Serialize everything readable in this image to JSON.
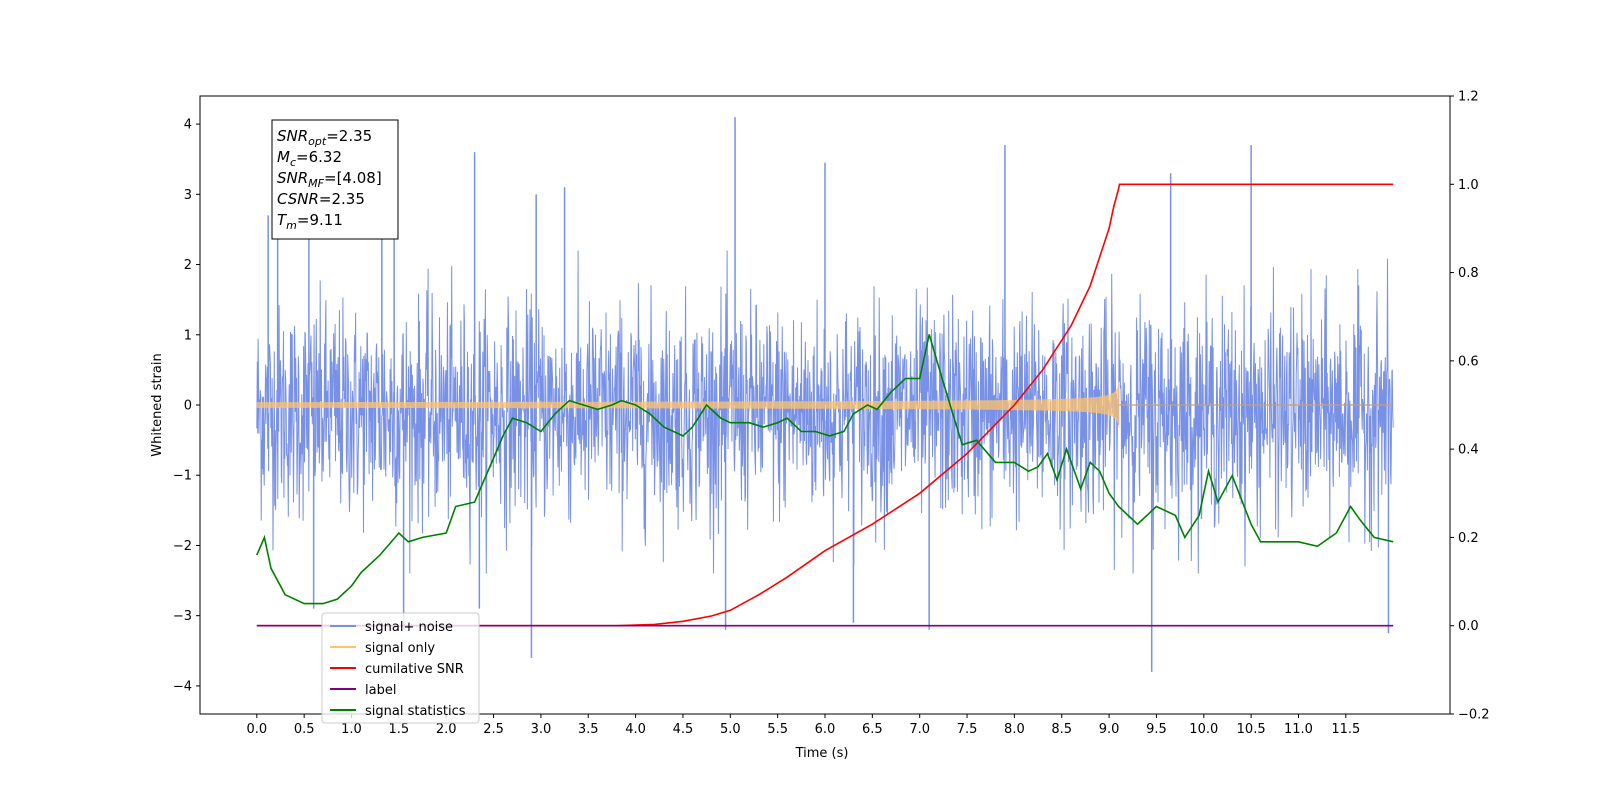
{
  "chart_data": {
    "type": "line",
    "xlabel": "Time (s)",
    "ylabel": "Whitened strain",
    "xlim": [
      -0.6,
      12.6
    ],
    "ylim": [
      -4.4,
      4.4
    ],
    "y2lim": [
      -0.2,
      1.2
    ],
    "x_ticks": [
      0.0,
      0.5,
      1.0,
      1.5,
      2.0,
      2.5,
      3.0,
      3.5,
      4.0,
      4.5,
      5.0,
      5.5,
      6.0,
      6.5,
      7.0,
      7.5,
      8.0,
      8.5,
      9.0,
      9.5,
      10.0,
      10.5,
      11.0,
      11.5
    ],
    "x_tick_labels": [
      "0.0",
      "0.5",
      "1.0",
      "1.5",
      "2.0",
      "2.5",
      "3.0",
      "3.5",
      "4.0",
      "4.5",
      "5.0",
      "5.5",
      "6.0",
      "6.5",
      "7.0",
      "7.5",
      "8.0",
      "8.5",
      "9.0",
      "9.5",
      "10.0",
      "10.5",
      "11.0",
      "11.5"
    ],
    "y_ticks": [
      4,
      3,
      2,
      1,
      0,
      -1,
      -2,
      -3,
      -4
    ],
    "y_tick_labels": [
      "4",
      "3",
      "2",
      "1",
      "0",
      "−1",
      "−2",
      "−3",
      "−4"
    ],
    "y2_ticks": [
      1.2,
      1.0,
      0.8,
      0.6,
      0.4,
      0.2,
      0.0,
      -0.2
    ],
    "y2_tick_labels": [
      "1.2",
      "1.0",
      "0.8",
      "0.6",
      "0.4",
      "0.2",
      "0.0",
      "−0.2"
    ],
    "grid": false,
    "legend_position": "lower-left",
    "legend": [
      {
        "label": "signal+ noise",
        "color": "#7891e6"
      },
      {
        "label": "signal only",
        "color": "#ffc36b"
      },
      {
        "label": "cumilative SNR",
        "color": "#ff0000"
      },
      {
        "label": "label",
        "color": "#800080"
      },
      {
        "label": "signal statistics",
        "color": "#008000"
      }
    ],
    "annotation": [
      {
        "text": "SNR",
        "sub": "opt",
        "value": "=2.35"
      },
      {
        "text": "M",
        "sub": "c",
        "value": "=6.32"
      },
      {
        "text": "SNR",
        "sub": "MF",
        "value": "=[4.08]"
      },
      {
        "text": "CSNR",
        "sub": "",
        "value": "=2.35"
      },
      {
        "text": "T",
        "sub": "m",
        "value": "=9.11"
      }
    ],
    "series": [
      {
        "name": "signal+ noise",
        "axis": "left",
        "color": "#7891e6",
        "description_type": "noise_band",
        "t_range": [
          0.0,
          12.0
        ],
        "envelope": {
          "upper_typical": 1.7,
          "lower_typical": -1.9
        },
        "spikes": [
          {
            "x": 0.12,
            "y": 2.7
          },
          {
            "x": 0.22,
            "y": 2.6
          },
          {
            "x": 0.55,
            "y": 2.5
          },
          {
            "x": 1.32,
            "y": 3.2
          },
          {
            "x": 1.45,
            "y": 2.9
          },
          {
            "x": 2.3,
            "y": 3.6
          },
          {
            "x": 2.95,
            "y": 3.0
          },
          {
            "x": 3.25,
            "y": 3.1
          },
          {
            "x": 5.05,
            "y": 4.1
          },
          {
            "x": 6.0,
            "y": 3.45
          },
          {
            "x": 7.9,
            "y": 3.7
          },
          {
            "x": 9.65,
            "y": 3.3
          },
          {
            "x": 10.5,
            "y": 3.7
          },
          {
            "x": 2.9,
            "y": -3.6
          },
          {
            "x": 1.55,
            "y": -3.2
          },
          {
            "x": 4.95,
            "y": -3.2
          },
          {
            "x": 6.3,
            "y": -3.1
          },
          {
            "x": 7.1,
            "y": -3.2
          },
          {
            "x": 9.45,
            "y": -3.8
          },
          {
            "x": 11.95,
            "y": -3.25
          },
          {
            "x": 0.6,
            "y": -2.9
          },
          {
            "x": 2.35,
            "y": -2.9
          }
        ]
      },
      {
        "name": "signal only",
        "axis": "left",
        "color": "#ffc36b",
        "description_type": "chirp",
        "t_range": [
          0.0,
          12.0
        ],
        "merger_time": 9.11,
        "peak_amplitude": 0.35
      },
      {
        "name": "cumilative SNR",
        "axis": "right",
        "color": "#ff0000",
        "x": [
          0.0,
          1.0,
          2.0,
          3.0,
          3.8,
          4.2,
          4.5,
          4.8,
          5.0,
          5.3,
          5.6,
          6.0,
          6.5,
          7.0,
          7.5,
          8.0,
          8.3,
          8.6,
          8.8,
          9.0,
          9.05,
          9.1,
          9.11,
          10.0,
          11.0,
          12.0
        ],
        "y": [
          0.0,
          0.0,
          0.0,
          0.0,
          0.0,
          0.003,
          0.01,
          0.022,
          0.035,
          0.07,
          0.11,
          0.17,
          0.23,
          0.3,
          0.39,
          0.5,
          0.58,
          0.68,
          0.77,
          0.9,
          0.95,
          0.99,
          1.0,
          1.0,
          1.0,
          1.0
        ]
      },
      {
        "name": "label",
        "axis": "right",
        "color": "#800080",
        "x": [
          0.0,
          12.0
        ],
        "y": [
          0.0,
          0.0
        ]
      },
      {
        "name": "signal statistics",
        "axis": "right",
        "color": "#008000",
        "x": [
          0.0,
          0.08,
          0.15,
          0.3,
          0.5,
          0.7,
          0.85,
          1.0,
          1.1,
          1.3,
          1.5,
          1.6,
          1.75,
          2.0,
          2.1,
          2.3,
          2.5,
          2.6,
          2.7,
          2.85,
          3.0,
          3.15,
          3.3,
          3.45,
          3.6,
          3.75,
          3.85,
          4.0,
          4.15,
          4.3,
          4.5,
          4.6,
          4.75,
          4.9,
          5.0,
          5.2,
          5.35,
          5.5,
          5.6,
          5.75,
          5.9,
          6.05,
          6.2,
          6.3,
          6.45,
          6.55,
          6.7,
          6.85,
          7.0,
          7.1,
          7.25,
          7.35,
          7.45,
          7.6,
          7.8,
          8.0,
          8.15,
          8.25,
          8.35,
          8.45,
          8.55,
          8.7,
          8.8,
          8.9,
          9.0,
          9.1,
          9.3,
          9.5,
          9.7,
          9.8,
          9.95,
          10.05,
          10.15,
          10.3,
          10.5,
          10.6,
          10.75,
          11.0,
          11.2,
          11.4,
          11.55,
          11.65,
          11.8,
          12.0
        ],
        "y": [
          0.16,
          0.2,
          0.13,
          0.07,
          0.05,
          0.05,
          0.06,
          0.09,
          0.12,
          0.16,
          0.21,
          0.19,
          0.2,
          0.21,
          0.27,
          0.28,
          0.38,
          0.43,
          0.47,
          0.46,
          0.44,
          0.48,
          0.51,
          0.5,
          0.49,
          0.5,
          0.51,
          0.5,
          0.48,
          0.45,
          0.43,
          0.45,
          0.5,
          0.47,
          0.46,
          0.46,
          0.45,
          0.46,
          0.47,
          0.44,
          0.44,
          0.43,
          0.44,
          0.48,
          0.5,
          0.49,
          0.53,
          0.56,
          0.56,
          0.66,
          0.55,
          0.48,
          0.41,
          0.42,
          0.37,
          0.37,
          0.35,
          0.36,
          0.39,
          0.33,
          0.4,
          0.31,
          0.37,
          0.35,
          0.3,
          0.27,
          0.23,
          0.27,
          0.25,
          0.2,
          0.25,
          0.35,
          0.28,
          0.34,
          0.23,
          0.19,
          0.19,
          0.19,
          0.18,
          0.21,
          0.27,
          0.24,
          0.2,
          0.19
        ]
      }
    ]
  }
}
